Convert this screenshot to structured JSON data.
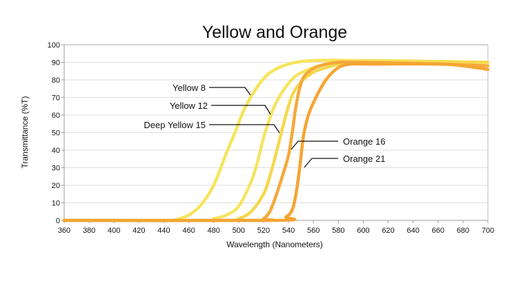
{
  "chart_data": {
    "type": "line",
    "title": "Yellow and Orange",
    "xlabel": "Wavelength  (Nanometers)",
    "ylabel": "Transmittance (%T)",
    "xlim": [
      360,
      700
    ],
    "ylim": [
      0,
      100
    ],
    "xticks": [
      360,
      380,
      400,
      420,
      440,
      460,
      480,
      500,
      520,
      540,
      560,
      580,
      600,
      620,
      640,
      660,
      680,
      700
    ],
    "yticks": [
      0,
      10,
      20,
      30,
      40,
      50,
      60,
      70,
      80,
      90,
      100
    ],
    "grid": true,
    "series": [
      {
        "name": "Yellow 8",
        "color": "#f7e45c",
        "x": [
          360,
          440,
          450,
          460,
          470,
          480,
          490,
          497,
          505,
          515,
          525,
          540,
          560,
          600,
          700
        ],
        "y": [
          0,
          0,
          0.5,
          3,
          9,
          20,
          38,
          50,
          64,
          76,
          84,
          89,
          91,
          91,
          90
        ]
      },
      {
        "name": "Yellow 12",
        "color": "#f6e462",
        "x": [
          360,
          470,
          480,
          490,
          500,
          510,
          515,
          520,
          525,
          530,
          540,
          550,
          570,
          600,
          700
        ],
        "y": [
          0,
          0,
          1,
          3,
          8,
          22,
          33,
          47,
          58,
          67,
          78,
          84,
          89,
          91,
          90
        ]
      },
      {
        "name": "Deep Yellow 15",
        "color": "#f5d84e",
        "x": [
          360,
          490,
          500,
          510,
          520,
          525,
          530,
          535,
          540,
          545,
          555,
          570,
          600,
          700
        ],
        "y": [
          0,
          0,
          1,
          5,
          15,
          25,
          38,
          52,
          65,
          74,
          82,
          87,
          90,
          90
        ]
      },
      {
        "name": "Orange 16",
        "color": "#f5a93a",
        "x": [
          360,
          515,
          520,
          525,
          530,
          535,
          540,
          543,
          546,
          550,
          555,
          565,
          580,
          600,
          660,
          700
        ],
        "y": [
          0,
          0,
          1,
          5,
          14,
          25,
          37,
          50,
          65,
          78,
          84,
          88,
          90,
          90,
          89,
          88
        ]
      },
      {
        "name": "Orange 21",
        "color": "#f4a532",
        "x": [
          360,
          530,
          538,
          543,
          546,
          549,
          552,
          556,
          562,
          570,
          580,
          590,
          600,
          660,
          680,
          700
        ],
        "y": [
          0,
          0,
          2,
          6,
          15,
          30,
          48,
          60,
          70,
          80,
          87,
          89,
          89,
          89,
          88,
          86
        ]
      }
    ]
  }
}
